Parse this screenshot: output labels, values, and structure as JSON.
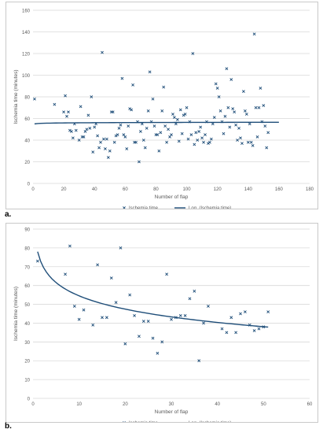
{
  "panels": {
    "a_label": "a.",
    "b_label": "b."
  },
  "colors": {
    "scatter": "#1f4e79",
    "trend": "#1f4e79",
    "grid": "#d9d9d9",
    "axis_text": "#595959"
  },
  "chart_data": [
    {
      "type": "scatter",
      "xlabel": "Number of flap",
      "ylabel": "Ischemia time (minutes)",
      "xlim": [
        0,
        180
      ],
      "ylim": [
        0,
        160
      ],
      "xticks": [
        0,
        20,
        40,
        60,
        80,
        100,
        120,
        140,
        160,
        180
      ],
      "yticks": [
        0,
        20,
        40,
        60,
        80,
        100,
        120,
        140,
        160
      ],
      "grid": "horizontal",
      "legend": {
        "placement": "bottom",
        "entries": [
          "Ischemia time",
          "Log. (Ischemia time)"
        ]
      },
      "trend": {
        "type": "log",
        "a": 55.0,
        "b": 0.3,
        "xrange": [
          1,
          160
        ]
      },
      "points": [
        [
          1,
          78
        ],
        [
          14,
          73
        ],
        [
          20,
          66
        ],
        [
          21,
          81
        ],
        [
          22,
          62
        ],
        [
          23,
          66
        ],
        [
          24,
          49
        ],
        [
          25,
          48
        ],
        [
          26,
          42
        ],
        [
          27,
          55
        ],
        [
          28,
          49
        ],
        [
          30,
          40
        ],
        [
          31,
          71
        ],
        [
          32,
          43
        ],
        [
          33,
          43
        ],
        [
          34,
          48
        ],
        [
          35,
          50
        ],
        [
          36,
          63
        ],
        [
          37,
          51
        ],
        [
          38,
          80
        ],
        [
          39,
          29
        ],
        [
          40,
          52
        ],
        [
          41,
          55
        ],
        [
          42,
          44
        ],
        [
          43,
          33
        ],
        [
          44,
          38
        ],
        [
          45,
          121
        ],
        [
          46,
          41
        ],
        [
          47,
          32
        ],
        [
          48,
          41
        ],
        [
          49,
          24
        ],
        [
          50,
          30
        ],
        [
          51,
          66
        ],
        [
          52,
          66
        ],
        [
          53,
          38
        ],
        [
          54,
          44
        ],
        [
          55,
          45
        ],
        [
          56,
          51
        ],
        [
          57,
          54
        ],
        [
          58,
          97
        ],
        [
          59,
          45
        ],
        [
          60,
          43
        ],
        [
          61,
          32
        ],
        [
          62,
          53
        ],
        [
          63,
          69
        ],
        [
          64,
          68
        ],
        [
          65,
          91
        ],
        [
          66,
          38
        ],
        [
          67,
          38
        ],
        [
          68,
          57
        ],
        [
          69,
          20
        ],
        [
          70,
          48
        ],
        [
          71,
          55
        ],
        [
          72,
          40
        ],
        [
          73,
          33
        ],
        [
          74,
          51
        ],
        [
          75,
          67
        ],
        [
          76,
          103
        ],
        [
          77,
          57
        ],
        [
          78,
          78
        ],
        [
          79,
          53
        ],
        [
          80,
          45
        ],
        [
          81,
          45
        ],
        [
          82,
          30
        ],
        [
          83,
          47
        ],
        [
          84,
          67
        ],
        [
          85,
          89
        ],
        [
          86,
          53
        ],
        [
          87,
          38
        ],
        [
          88,
          50
        ],
        [
          89,
          43
        ],
        [
          90,
          45
        ],
        [
          91,
          64
        ],
        [
          92,
          61
        ],
        [
          93,
          55
        ],
        [
          94,
          59
        ],
        [
          95,
          39
        ],
        [
          96,
          68
        ],
        [
          97,
          46
        ],
        [
          98,
          63
        ],
        [
          99,
          64
        ],
        [
          100,
          70
        ],
        [
          101,
          41
        ],
        [
          102,
          57
        ],
        [
          103,
          45
        ],
        [
          104,
          120
        ],
        [
          105,
          36
        ],
        [
          106,
          47
        ],
        [
          107,
          40
        ],
        [
          108,
          48
        ],
        [
          109,
          52
        ],
        [
          110,
          42
        ],
        [
          111,
          38
        ],
        [
          112,
          45
        ],
        [
          113,
          57
        ],
        [
          114,
          37
        ],
        [
          115,
          38
        ],
        [
          116,
          41
        ],
        [
          117,
          55
        ],
        [
          118,
          61
        ],
        [
          119,
          92
        ],
        [
          120,
          88
        ],
        [
          121,
          80
        ],
        [
          122,
          67
        ],
        [
          123,
          57
        ],
        [
          124,
          46
        ],
        [
          125,
          62
        ],
        [
          126,
          106
        ],
        [
          127,
          70
        ],
        [
          128,
          52
        ],
        [
          129,
          96
        ],
        [
          130,
          69
        ],
        [
          131,
          66
        ],
        [
          132,
          54
        ],
        [
          133,
          40
        ],
        [
          134,
          51
        ],
        [
          135,
          42
        ],
        [
          136,
          37
        ],
        [
          137,
          85
        ],
        [
          138,
          67
        ],
        [
          139,
          64
        ],
        [
          140,
          38
        ],
        [
          141,
          55
        ],
        [
          142,
          38
        ],
        [
          143,
          35
        ],
        [
          144,
          138
        ],
        [
          145,
          70
        ],
        [
          146,
          43
        ],
        [
          147,
          70
        ],
        [
          148,
          88
        ],
        [
          149,
          57
        ],
        [
          150,
          72
        ],
        [
          151,
          53
        ],
        [
          152,
          33
        ],
        [
          153,
          47
        ]
      ]
    },
    {
      "type": "scatter",
      "xlabel": "Number of flap",
      "ylabel": "Ischemia time (minutes)",
      "xlim": [
        0,
        60
      ],
      "ylim": [
        0,
        90
      ],
      "xticks": [
        0,
        10,
        20,
        30,
        40,
        50,
        60
      ],
      "yticks": [
        0,
        10,
        20,
        30,
        40,
        50,
        60,
        70,
        80,
        90
      ],
      "grid": "horizontal",
      "legend": {
        "placement": "bottom",
        "entries": [
          "Ischemia time",
          "Log. (Ischemia time)"
        ]
      },
      "trend": {
        "type": "log",
        "a": 78.0,
        "b": -10.2,
        "xrange": [
          1,
          51
        ]
      },
      "points": [
        [
          1,
          73
        ],
        [
          7,
          66
        ],
        [
          8,
          81
        ],
        [
          9,
          49
        ],
        [
          10,
          42
        ],
        [
          11,
          47
        ],
        [
          13,
          39
        ],
        [
          14,
          71
        ],
        [
          15,
          43
        ],
        [
          16,
          43
        ],
        [
          17,
          64
        ],
        [
          18,
          51
        ],
        [
          19,
          80
        ],
        [
          20,
          29
        ],
        [
          21,
          55
        ],
        [
          22,
          44
        ],
        [
          23,
          33
        ],
        [
          24,
          41
        ],
        [
          25,
          41
        ],
        [
          26,
          32
        ],
        [
          27,
          24
        ],
        [
          28,
          30
        ],
        [
          29,
          66
        ],
        [
          30,
          42
        ],
        [
          31,
          43
        ],
        [
          32,
          44
        ],
        [
          33,
          44
        ],
        [
          34,
          53
        ],
        [
          35,
          57
        ],
        [
          36,
          20
        ],
        [
          37,
          40
        ],
        [
          38,
          49
        ],
        [
          41,
          37
        ],
        [
          42,
          35
        ],
        [
          43,
          43
        ],
        [
          44,
          35
        ],
        [
          45,
          45
        ],
        [
          46,
          46
        ],
        [
          47,
          39
        ],
        [
          48,
          36
        ],
        [
          49,
          37
        ],
        [
          50,
          38
        ],
        [
          51,
          46
        ]
      ]
    }
  ]
}
